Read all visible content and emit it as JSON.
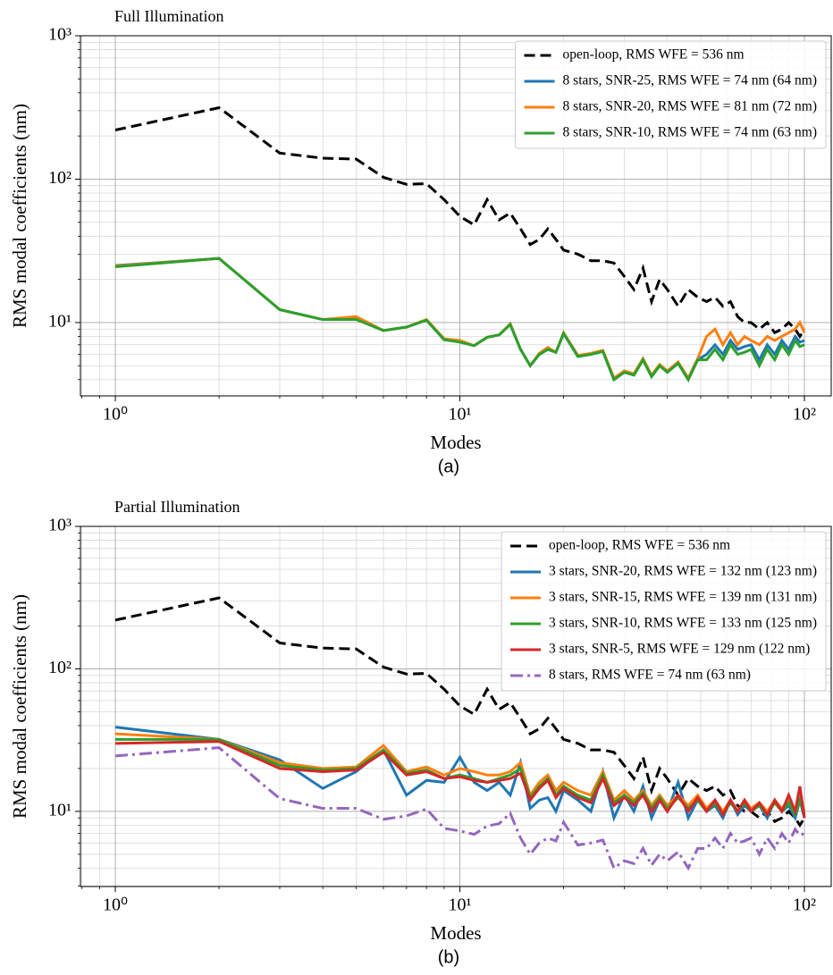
{
  "chart_data": [
    {
      "type": "line",
      "title": "Full Illumination",
      "x_label": "Modes",
      "y_label": "RMS modal coefficients (nm)",
      "caption": "(a)",
      "log_x": true,
      "log_y": true,
      "grid": true,
      "legend": "upper right",
      "xlim": [
        0.792,
        119.6
      ],
      "ylim": [
        3.08,
        1000
      ],
      "xticks": [
        {
          "value": 1,
          "label": "10⁰"
        },
        {
          "value": 10,
          "label": "10¹"
        },
        {
          "value": 100,
          "label": "10²"
        }
      ],
      "yticks": [
        {
          "value": 10,
          "label": "10¹"
        },
        {
          "value": 100,
          "label": "10²"
        },
        {
          "value": 1000,
          "label": "10³"
        }
      ],
      "x": [
        1,
        2,
        3,
        4,
        5,
        6,
        7,
        8,
        9,
        10,
        11,
        12,
        13,
        14,
        15,
        16,
        17,
        18,
        19,
        20,
        22,
        24,
        26,
        28,
        30,
        32,
        34,
        36,
        38,
        40,
        43,
        46,
        49,
        52,
        55,
        58,
        61,
        64,
        67,
        70,
        74,
        78,
        82,
        86,
        90,
        94,
        97,
        100
      ],
      "series": [
        {
          "name": "open-loop, RMS WFE = 536 nm",
          "color": "#000000",
          "dash": "dashed",
          "values": [
            220,
            315,
            152,
            140,
            138,
            103,
            92,
            93,
            72,
            55,
            48,
            72,
            52,
            58,
            45,
            35,
            38,
            45,
            38,
            32,
            30,
            27,
            27,
            26,
            21,
            17,
            24,
            14,
            20,
            17,
            13,
            17,
            15,
            14,
            15,
            13,
            14,
            11,
            10,
            10,
            9,
            10,
            8.5,
            9,
            10,
            9,
            8,
            9
          ]
        },
        {
          "name": "8 stars, SNR-25, RMS WFE = 74 nm (64 nm)",
          "color": "#1f77b4",
          "dash": "solid",
          "values": [
            25,
            28,
            12.3,
            10.5,
            10.6,
            8.8,
            9.3,
            10.4,
            7.6,
            7.4,
            6.9,
            7.9,
            8.2,
            9.7,
            6.5,
            5,
            6,
            6.5,
            6.2,
            8.4,
            5.8,
            6,
            6.3,
            4,
            4.5,
            4.3,
            5.5,
            4.2,
            5,
            4.5,
            5.2,
            4,
            5.5,
            6,
            7,
            6,
            7.5,
            6.5,
            6.8,
            7,
            5.5,
            7,
            6,
            7.5,
            6.5,
            8,
            7.3,
            7.5
          ]
        },
        {
          "name": "8 stars, SNR-20, RMS WFE = 81 nm (72 nm)",
          "color": "#ff7f0e",
          "dash": "solid",
          "values": [
            24.8,
            28,
            12.3,
            10.5,
            11,
            8.8,
            9.3,
            10.5,
            7.7,
            7.5,
            6.9,
            7.9,
            8.2,
            9.8,
            6.5,
            5,
            6.1,
            6.7,
            6.2,
            8.5,
            5.9,
            6.1,
            6.4,
            4.1,
            4.6,
            4.4,
            5.6,
            4.3,
            5.1,
            4.6,
            5.3,
            4.1,
            5.6,
            8,
            9,
            7,
            8.5,
            7,
            8,
            7.5,
            7,
            8,
            7.5,
            8,
            8.5,
            9,
            10,
            8.5
          ]
        },
        {
          "name": "8 stars, SNR-10, RMS WFE = 74 nm (63 nm)",
          "color": "#2ca02c",
          "dash": "solid",
          "values": [
            24.5,
            28,
            12.3,
            10.5,
            10.5,
            8.8,
            9.3,
            10.4,
            7.6,
            7.3,
            6.9,
            7.9,
            8.2,
            9.7,
            6.5,
            5,
            6,
            6.5,
            6.2,
            8.4,
            5.8,
            6,
            6.3,
            4,
            4.5,
            4.3,
            5.5,
            4.2,
            5,
            4.5,
            5.2,
            4,
            5.5,
            5.5,
            6.5,
            5.5,
            7,
            6,
            6.2,
            6.5,
            5,
            6.5,
            5.5,
            7,
            6,
            7.5,
            6.8,
            7
          ]
        }
      ]
    },
    {
      "type": "line",
      "title": "Partial Illumination",
      "x_label": "Modes",
      "y_label": "RMS modal coefficients (nm)",
      "caption": "(b)",
      "log_x": true,
      "log_y": true,
      "grid": true,
      "legend": "upper right",
      "xlim": [
        0.792,
        119.6
      ],
      "ylim": [
        2.97,
        1000
      ],
      "xticks": [
        {
          "value": 1,
          "label": "10⁰"
        },
        {
          "value": 10,
          "label": "10¹"
        },
        {
          "value": 100,
          "label": "10²"
        }
      ],
      "yticks": [
        {
          "value": 10,
          "label": "10¹"
        },
        {
          "value": 100,
          "label": "10²"
        },
        {
          "value": 1000,
          "label": "10³"
        }
      ],
      "x": [
        1,
        2,
        3,
        4,
        5,
        6,
        7,
        8,
        9,
        10,
        11,
        12,
        13,
        14,
        15,
        16,
        17,
        18,
        19,
        20,
        22,
        24,
        26,
        28,
        30,
        32,
        34,
        36,
        38,
        40,
        43,
        46,
        49,
        52,
        55,
        58,
        61,
        64,
        67,
        70,
        74,
        78,
        82,
        86,
        90,
        94,
        97,
        100
      ],
      "series": [
        {
          "name": "open-loop, RMS WFE = 536 nm",
          "color": "#000000",
          "dash": "dashed",
          "values": [
            220,
            315,
            152,
            140,
            138,
            103,
            92,
            93,
            72,
            55,
            48,
            72,
            52,
            58,
            45,
            35,
            38,
            45,
            38,
            32,
            30,
            27,
            27,
            26,
            21,
            17,
            24,
            14,
            20,
            17,
            13,
            17,
            15,
            14,
            15,
            13,
            14,
            11,
            10,
            10,
            9,
            10,
            8.5,
            9,
            10,
            9,
            8,
            9
          ]
        },
        {
          "name": "3 stars, SNR-20, RMS WFE = 132 nm (123 nm)",
          "color": "#1f77b4",
          "dash": "solid",
          "values": [
            39,
            32,
            23,
            14.5,
            19,
            27,
            13,
            16.5,
            16,
            24,
            16,
            14,
            16,
            13,
            22,
            10.5,
            12,
            12.5,
            10,
            14,
            12,
            10,
            19,
            9,
            13,
            10,
            15,
            9,
            12,
            10,
            16,
            9,
            12,
            10,
            11,
            9,
            12,
            9.5,
            11,
            10,
            11,
            9,
            12,
            10,
            11,
            9,
            12,
            9
          ]
        },
        {
          "name": "3 stars, SNR-15, RMS WFE = 139 nm (131 nm)",
          "color": "#ff7f0e",
          "dash": "solid",
          "values": [
            35,
            32,
            22,
            20,
            20.5,
            29,
            19,
            20.5,
            18,
            20,
            19,
            18,
            18,
            19,
            22,
            13,
            16,
            18,
            14,
            16,
            14,
            13,
            19,
            12,
            14,
            12,
            14,
            11,
            13,
            11,
            13,
            11,
            13,
            10.5,
            12,
            10,
            12,
            10,
            12,
            10.5,
            11.5,
            10,
            12,
            10.5,
            12,
            10,
            12,
            10
          ]
        },
        {
          "name": "3 stars, SNR-10, RMS WFE = 133 nm (125 nm)",
          "color": "#2ca02c",
          "dash": "solid",
          "values": [
            32,
            32,
            21,
            19.5,
            20,
            27,
            18.5,
            19.5,
            17,
            18,
            17,
            16,
            17,
            18,
            20,
            12.5,
            15,
            17,
            13,
            15,
            13,
            12,
            18,
            11.5,
            13,
            11.5,
            13.5,
            10.5,
            12.5,
            10.5,
            12.5,
            10.5,
            12,
            10,
            11.5,
            9.5,
            11.5,
            10,
            11.5,
            10,
            11,
            9.5,
            11.5,
            10,
            11.5,
            9.5,
            12,
            9.5
          ]
        },
        {
          "name": "3 stars, SNR-5, RMS WFE = 129 nm (122 nm)",
          "color": "#d62728",
          "dash": "solid",
          "values": [
            30,
            31,
            20,
            19,
            19.5,
            26,
            18,
            19,
            17,
            17.5,
            16.5,
            16,
            16.5,
            17,
            18.5,
            12,
            14.5,
            16.5,
            12.5,
            14.5,
            12.5,
            11.5,
            17,
            11,
            12.5,
            11,
            13,
            10,
            12,
            10,
            13,
            10,
            12.5,
            10,
            12,
            9.5,
            12,
            10,
            12,
            10,
            11.5,
            9.5,
            12,
            10,
            13,
            10,
            15,
            9
          ]
        },
        {
          "name": "8 stars, RMS WFE = 74 nm (63 nm)",
          "color": "#9467bd",
          "dash": "dashdot",
          "values": [
            24.5,
            28,
            12.3,
            10.5,
            10.5,
            8.8,
            9.3,
            10.4,
            7.6,
            7.3,
            6.9,
            7.9,
            8.2,
            9.7,
            6.5,
            5,
            6,
            6.5,
            6.2,
            8.4,
            5.8,
            6,
            6.3,
            4,
            4.5,
            4.3,
            5.5,
            4.2,
            5,
            4.5,
            5.2,
            4,
            5.5,
            5.5,
            6.5,
            5.5,
            7,
            6,
            6.2,
            6.5,
            5,
            6.5,
            5.5,
            7,
            6,
            7.5,
            6.8,
            7
          ]
        }
      ]
    }
  ]
}
